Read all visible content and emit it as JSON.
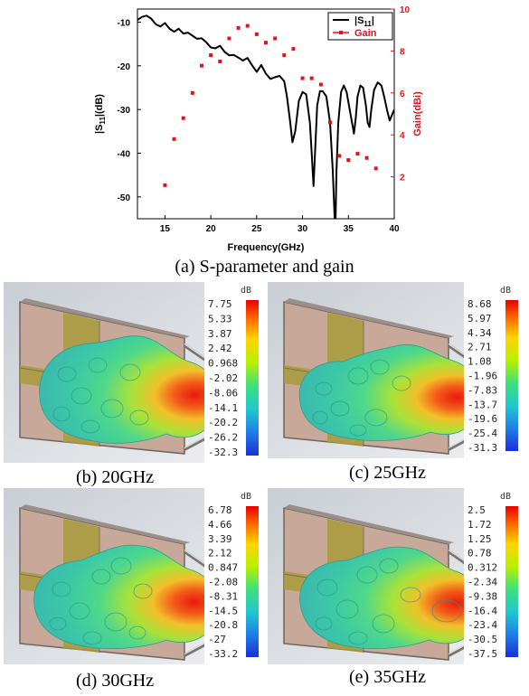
{
  "figure": {
    "caption_a": "(a) S-parameter and gain",
    "caption_b": "(b) 20GHz",
    "caption_c": "(c) 25GHz",
    "caption_d": "(d) 30GHz",
    "caption_e": "(e) 35GHz"
  },
  "chart_data": [
    {
      "type": "line",
      "xlabel": "Frequency(GHz)",
      "ylabel_left": "|S11|(dB)",
      "ylabel_right": "Gain(dBi)",
      "xlim": [
        12,
        40
      ],
      "ylim_left": [
        -55,
        -7
      ],
      "ylim_right": [
        0,
        10
      ],
      "x_ticks": [
        15,
        20,
        25,
        30,
        35,
        40
      ],
      "y_left_ticks": [
        -10,
        -20,
        -30,
        -40,
        -50
      ],
      "y_right_ticks": [
        2,
        4,
        6,
        8,
        10
      ],
      "legend": {
        "position": "top-right",
        "entries": [
          "|S11|",
          "Gain"
        ]
      },
      "colors": {
        "s11": "#000000",
        "gain": "#e8111b"
      },
      "series": [
        {
          "name": "|S11|",
          "axis": "left",
          "style": "line",
          "x": [
            12,
            12.5,
            13,
            13.5,
            14,
            14.5,
            15,
            15.5,
            16,
            16.5,
            17,
            17.5,
            18,
            18.5,
            19,
            19.5,
            20,
            20.5,
            21,
            21.5,
            22,
            22.5,
            23,
            23.5,
            24,
            24.5,
            25,
            25.5,
            26,
            26.5,
            27,
            27.5,
            28,
            28.3,
            28.6,
            28.9,
            29.2,
            29.6,
            30,
            30.4,
            30.8,
            31,
            31.2,
            31.4,
            31.6,
            31.9,
            32.2,
            32.6,
            33,
            33.3,
            33.5,
            33.6,
            33.7,
            33.9,
            34.2,
            34.5,
            34.8,
            35.1,
            35.4,
            35.6,
            35.8,
            36,
            36.3,
            36.6,
            36.9,
            37.1,
            37.3,
            37.5,
            37.8,
            38.2,
            38.6,
            38.9,
            39.2,
            39.5,
            39.8,
            40
          ],
          "values": [
            -9.5,
            -8.8,
            -8.5,
            -9.2,
            -10.5,
            -11.0,
            -10.2,
            -11.5,
            -12.2,
            -11.5,
            -12.6,
            -12.4,
            -13.1,
            -13.8,
            -13.7,
            -14.6,
            -15.8,
            -16.0,
            -15.4,
            -16.8,
            -17.6,
            -17.5,
            -18.1,
            -18.8,
            -18.2,
            -19.9,
            -21.4,
            -19.8,
            -21.8,
            -23.0,
            -22.6,
            -22.3,
            -23.5,
            -27.0,
            -32.0,
            -37.5,
            -35.0,
            -28.0,
            -26.0,
            -26.5,
            -33.0,
            -40.0,
            -47.5,
            -38.0,
            -29.0,
            -25.8,
            -25.8,
            -27.0,
            -33.0,
            -44.0,
            -55.0,
            -55.0,
            -44.0,
            -33.0,
            -26.0,
            -24.5,
            -26.0,
            -29.5,
            -33.0,
            -35.5,
            -32.0,
            -27.0,
            -24.5,
            -25.0,
            -29.0,
            -33.0,
            -34.0,
            -30.0,
            -25.5,
            -23.8,
            -24.5,
            -27.0,
            -30.0,
            -32.5,
            -31.0,
            -30.0
          ]
        },
        {
          "name": "Gain",
          "axis": "right",
          "style": "scatter",
          "x": [
            15,
            16,
            17,
            18,
            19,
            20,
            21,
            22,
            23,
            24,
            25,
            26,
            27,
            28,
            29,
            30,
            31,
            32,
            33,
            34,
            35,
            36,
            37,
            38
          ],
          "values": [
            1.6,
            3.8,
            4.8,
            6.0,
            7.3,
            7.8,
            7.5,
            8.6,
            9.1,
            9.2,
            8.8,
            8.4,
            8.6,
            7.8,
            8.1,
            6.7,
            6.7,
            6.4,
            4.6,
            3.0,
            2.8,
            3.1,
            2.9,
            2.4
          ]
        }
      ]
    }
  ],
  "patterns": [
    {
      "id": "b",
      "unit": "dB",
      "ticks": [
        "7.75",
        "5.33",
        "3.87",
        "2.42",
        "0.968",
        "-2.02",
        "-8.06",
        "-14.1",
        "-20.2",
        "-26.2",
        "-32.3"
      ]
    },
    {
      "id": "c",
      "unit": "dB",
      "ticks": [
        "8.68",
        "5.97",
        "4.34",
        "2.71",
        "1.08",
        "-1.96",
        "-7.83",
        "-13.7",
        "-19.6",
        "-25.4",
        "-31.3"
      ]
    },
    {
      "id": "d",
      "unit": "dB",
      "ticks": [
        "6.78",
        "4.66",
        "3.39",
        "2.12",
        "0.847",
        "-2.08",
        "-8.31",
        "-14.5",
        "-20.8",
        "-27",
        "-33.2"
      ]
    },
    {
      "id": "e",
      "unit": "dB",
      "ticks": [
        "2.5",
        "1.72",
        "1.25",
        "0.78",
        "0.312",
        "-2.34",
        "-9.38",
        "-16.4",
        "-23.4",
        "-30.5",
        "-37.5"
      ]
    }
  ]
}
